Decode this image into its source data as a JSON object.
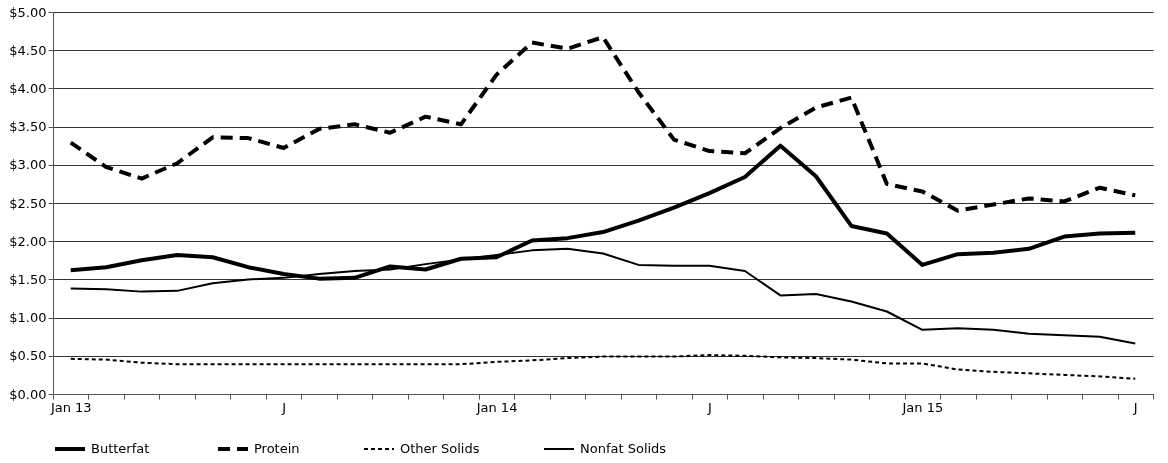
{
  "chart_data": {
    "type": "line",
    "categories": [
      "Jan 13",
      null,
      null,
      null,
      null,
      null,
      "J",
      null,
      null,
      null,
      null,
      null,
      "Jan 14",
      null,
      null,
      null,
      null,
      null,
      "J",
      null,
      null,
      null,
      null,
      null,
      "Jan 15",
      null,
      null,
      null,
      null,
      null,
      "J"
    ],
    "series": [
      {
        "name": "Butterfat",
        "color": "#000000",
        "line_style": "solid",
        "values": [
          1.62,
          1.66,
          1.75,
          1.82,
          1.79,
          1.66,
          1.57,
          1.51,
          1.52,
          1.67,
          1.63,
          1.77,
          1.79,
          2.01,
          2.04,
          2.12,
          2.27,
          2.44,
          2.63,
          2.84,
          3.25,
          2.85,
          2.2,
          2.1,
          1.69,
          1.83,
          1.85,
          1.9,
          2.06,
          2.1,
          2.11
        ]
      },
      {
        "name": "Protein",
        "color": "#000000",
        "line_style": "dashed",
        "values": [
          3.29,
          2.97,
          2.82,
          3.02,
          3.36,
          3.35,
          3.22,
          3.47,
          3.53,
          3.42,
          3.63,
          3.53,
          4.18,
          4.6,
          4.52,
          4.67,
          3.95,
          3.33,
          3.18,
          3.15,
          3.48,
          3.75,
          3.88,
          2.75,
          2.65,
          2.4,
          2.48,
          2.56,
          2.52,
          2.7,
          2.6
        ]
      },
      {
        "name": "Other Solids",
        "color": "#000000",
        "line_style": "dotted",
        "values": [
          0.46,
          0.45,
          0.41,
          0.39,
          0.39,
          0.39,
          0.39,
          0.39,
          0.39,
          0.39,
          0.39,
          0.39,
          0.42,
          0.44,
          0.47,
          0.49,
          0.49,
          0.49,
          0.51,
          0.5,
          0.48,
          0.47,
          0.45,
          0.4,
          0.4,
          0.32,
          0.29,
          0.27,
          0.25,
          0.23,
          0.2
        ]
      },
      {
        "name": "Nonfat Solids",
        "color": "#000000",
        "line_style": "solid",
        "values": [
          1.38,
          1.37,
          1.34,
          1.35,
          1.45,
          1.5,
          1.52,
          1.57,
          1.61,
          1.63,
          1.7,
          1.76,
          1.82,
          1.88,
          1.9,
          1.84,
          1.69,
          1.68,
          1.68,
          1.61,
          1.29,
          1.31,
          1.21,
          1.08,
          0.84,
          0.86,
          0.84,
          0.79,
          0.77,
          0.75,
          0.66
        ]
      }
    ],
    "ylim": [
      0,
      5
    ],
    "yticks": [
      {
        "value": 0,
        "label": "$0.00"
      },
      {
        "value": 0.5,
        "label": "$0.50"
      },
      {
        "value": 1,
        "label": "$1.00"
      },
      {
        "value": 1.5,
        "label": "$1.50"
      },
      {
        "value": 2,
        "label": "$2.00"
      },
      {
        "value": 2.5,
        "label": "$2.50"
      },
      {
        "value": 3,
        "label": "$3.00"
      },
      {
        "value": 3.5,
        "label": "$3.50"
      },
      {
        "value": 4,
        "label": "$4.00"
      },
      {
        "value": 4.5,
        "label": "$4.50"
      },
      {
        "value": 5,
        "label": "$5.00"
      }
    ],
    "grid": "y",
    "legend": "bottom",
    "marker": "none"
  }
}
